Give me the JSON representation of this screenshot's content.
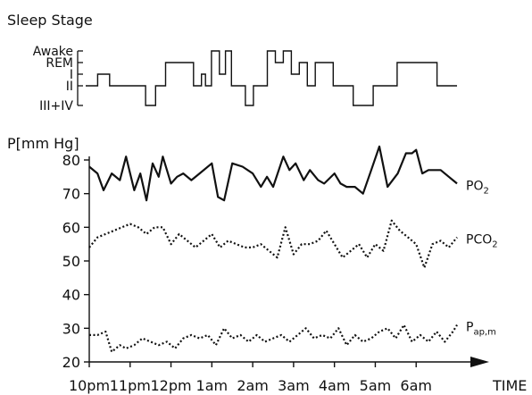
{
  "chart_data": {
    "type": "line",
    "panels": [
      {
        "name": "sleep",
        "title": "Sleep Stage",
        "stages": [
          "Awake",
          "REM",
          "I",
          "II",
          "III+IV"
        ],
        "x": [
          0,
          0.3,
          0.6,
          1.0,
          1.5,
          1.75,
          2.0,
          2.5,
          2.7,
          2.9,
          3.0,
          3.15,
          3.35,
          3.5,
          3.65,
          3.8,
          4.0,
          4.2,
          4.35,
          4.55,
          4.75,
          4.95,
          5.15,
          5.35,
          5.55,
          5.75,
          5.95,
          6.2,
          6.7,
          7.2,
          7.8,
          8.2,
          8.8,
          9.3
        ],
        "stage_index": [
          3,
          2,
          3,
          3,
          4,
          3,
          1,
          1,
          3,
          2,
          3,
          0,
          2,
          0,
          3,
          3,
          4,
          3,
          3,
          0,
          1,
          0,
          2,
          1,
          3,
          1,
          1,
          3,
          4,
          3,
          1,
          1,
          3,
          3
        ]
      },
      {
        "name": "pressure",
        "ylabel": "P[mm Hg]",
        "yticks": [
          20,
          30,
          40,
          50,
          60,
          70,
          80
        ],
        "ylim": [
          20,
          80
        ],
        "xticks": [
          "10pm",
          "11pm",
          "12pm",
          "1am",
          "2am",
          "3am",
          "4am",
          "5am",
          "6am"
        ],
        "xlabel": "TIME",
        "series": [
          {
            "name": "PO",
            "name_sub": "2",
            "style": "solid",
            "x": [
              0,
              0.2,
              0.35,
              0.55,
              0.75,
              0.9,
              1.0,
              1.1,
              1.25,
              1.4,
              1.55,
              1.7,
              1.8,
              2.0,
              2.15,
              2.3,
              2.5,
              2.7,
              3.0,
              3.15,
              3.3,
              3.5,
              3.75,
              4.0,
              4.2,
              4.35,
              4.5,
              4.75,
              4.9,
              5.05,
              5.25,
              5.4,
              5.6,
              5.75,
              6.0,
              6.15,
              6.3,
              6.5,
              6.7,
              6.9,
              7.1,
              7.3,
              7.55,
              7.75,
              7.9,
              8.0,
              8.15,
              8.3,
              8.45,
              8.6,
              8.8,
              9.0
            ],
            "values": [
              78,
              76,
              71,
              76,
              74,
              81,
              76,
              71,
              76,
              68,
              79,
              75,
              81,
              73,
              75,
              76,
              74,
              76,
              79,
              69,
              68,
              79,
              78,
              76,
              72,
              75,
              72,
              81,
              77,
              79,
              74,
              77,
              74,
              73,
              76,
              73,
              72,
              72,
              70,
              77,
              84,
              72,
              76,
              82,
              82,
              83,
              76,
              77,
              77,
              77,
              75,
              73
            ]
          },
          {
            "name": "PCO",
            "name_sub": "2",
            "style": "dotted",
            "x": [
              0,
              0.2,
              0.4,
              0.6,
              0.8,
              1.0,
              1.2,
              1.4,
              1.6,
              1.8,
              2.0,
              2.2,
              2.4,
              2.6,
              2.8,
              3.0,
              3.2,
              3.4,
              3.6,
              3.8,
              4.0,
              4.2,
              4.4,
              4.6,
              4.8,
              5.0,
              5.2,
              5.4,
              5.6,
              5.8,
              6.0,
              6.2,
              6.4,
              6.6,
              6.8,
              7.0,
              7.2,
              7.4,
              7.6,
              7.8,
              8.0,
              8.2,
              8.4,
              8.6,
              8.8,
              9.0
            ],
            "values": [
              54,
              57,
              58,
              59,
              60,
              61,
              60,
              58,
              60,
              60,
              55,
              58,
              56,
              54,
              56,
              58,
              54,
              56,
              55,
              54,
              54,
              55,
              53,
              51,
              60,
              52,
              55,
              55,
              56,
              59,
              55,
              51,
              53,
              55,
              51,
              55,
              53,
              62,
              59,
              57,
              55,
              48,
              55,
              56,
              54,
              57
            ]
          },
          {
            "name": "P",
            "name_sub": "ap,m",
            "style": "dotted",
            "x": [
              0,
              0.2,
              0.4,
              0.55,
              0.75,
              0.9,
              1.1,
              1.3,
              1.5,
              1.7,
              1.9,
              2.1,
              2.3,
              2.5,
              2.7,
              2.9,
              3.1,
              3.3,
              3.5,
              3.7,
              3.9,
              4.1,
              4.3,
              4.5,
              4.7,
              4.9,
              5.1,
              5.3,
              5.5,
              5.7,
              5.9,
              6.1,
              6.3,
              6.5,
              6.7,
              6.9,
              7.1,
              7.3,
              7.5,
              7.7,
              7.9,
              8.1,
              8.3,
              8.5,
              8.7,
              8.9,
              9.0
            ],
            "values": [
              28,
              28,
              29,
              23,
              25,
              24,
              25,
              27,
              26,
              25,
              26,
              24,
              27,
              28,
              27,
              28,
              25,
              30,
              27,
              28,
              26,
              28,
              26,
              27,
              28,
              26,
              28,
              30,
              27,
              28,
              27,
              30,
              25,
              28,
              26,
              27,
              29,
              30,
              27,
              31,
              26,
              28,
              26,
              29,
              26,
              29,
              31
            ]
          }
        ]
      }
    ]
  }
}
